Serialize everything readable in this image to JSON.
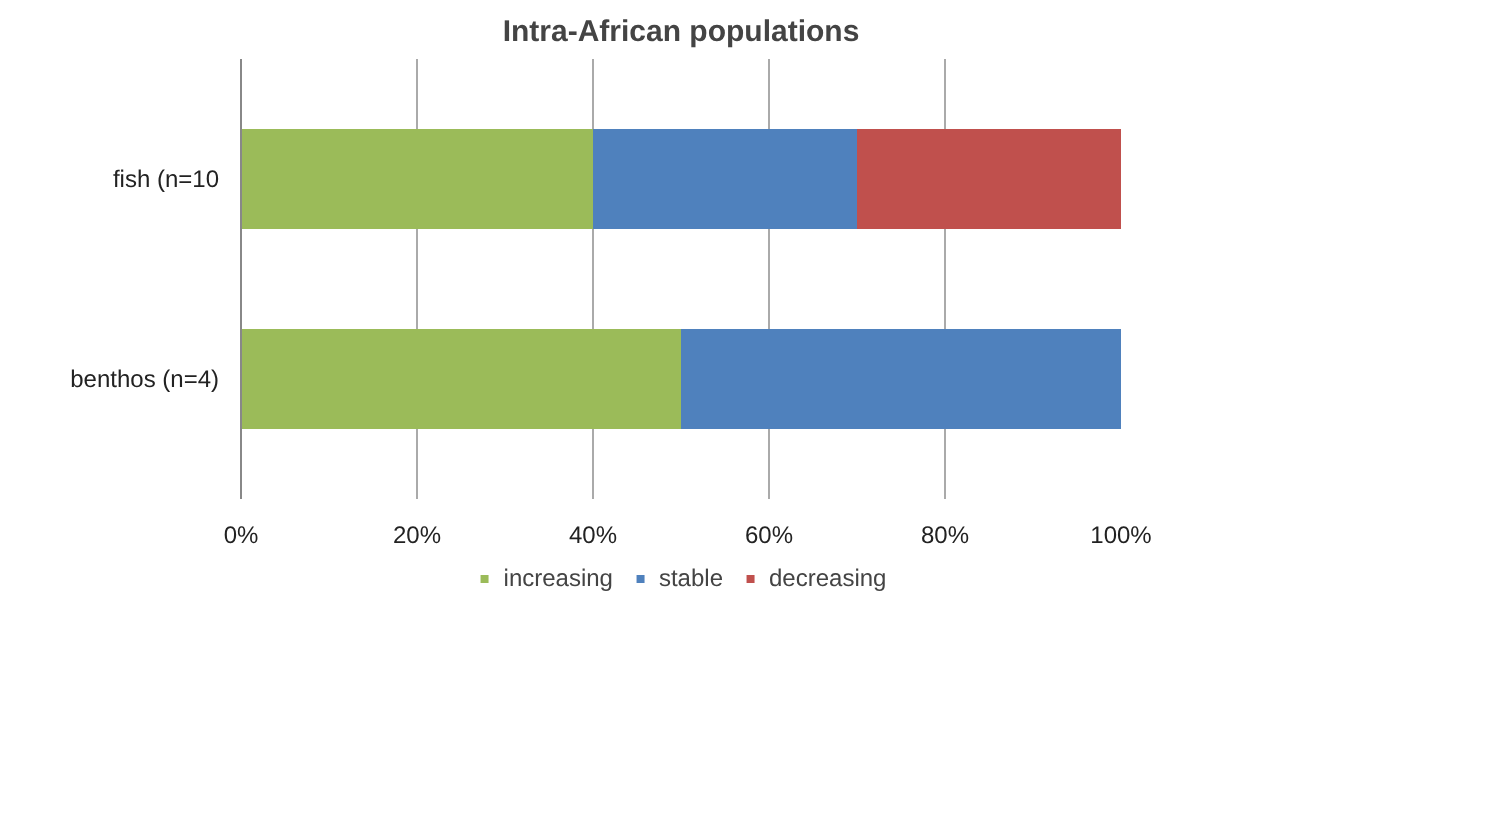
{
  "chart_data": {
    "type": "bar",
    "title": "Intra-African populations",
    "orientation": "horizontal",
    "stacked": true,
    "categories": [
      "fish (n=10",
      "benthos (n=4)"
    ],
    "series": [
      {
        "name": "increasing",
        "color": "#9bbb59",
        "values": [
          40,
          50
        ]
      },
      {
        "name": "stable",
        "color": "#4f81bd",
        "values": [
          30,
          50
        ]
      },
      {
        "name": "decreasing",
        "color": "#c0504d",
        "values": [
          30,
          0
        ]
      }
    ],
    "xlim": [
      0,
      100
    ],
    "xticks": [
      {
        "value": 0,
        "label": "0%"
      },
      {
        "value": 20,
        "label": "20%"
      },
      {
        "value": 40,
        "label": "40%"
      },
      {
        "value": 60,
        "label": "60%"
      },
      {
        "value": 80,
        "label": "80%"
      },
      {
        "value": 100,
        "label": "100%"
      }
    ],
    "grid": "x",
    "legend": "bottom"
  }
}
